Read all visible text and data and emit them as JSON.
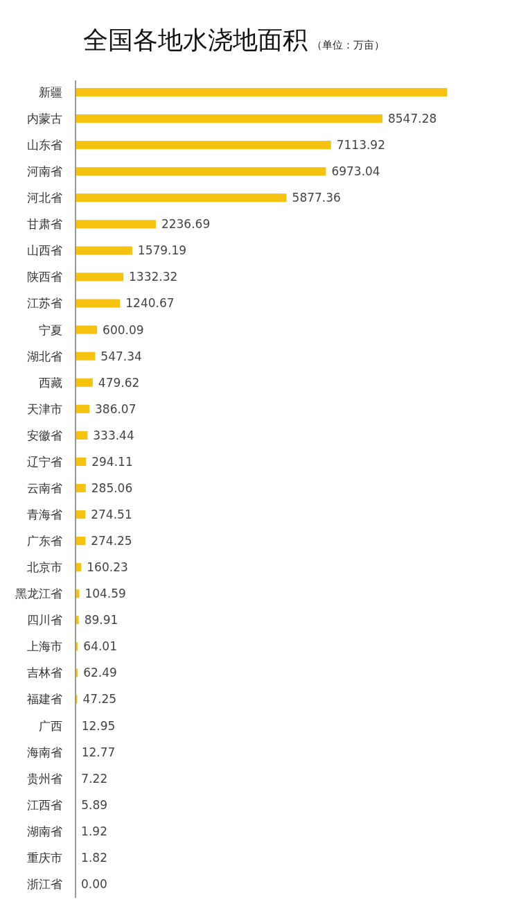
{
  "chart_data": {
    "type": "bar",
    "orientation": "horizontal",
    "title": "全国各地水浇地面积",
    "subtitle": "（单位：万亩）",
    "color": "#f5c20f",
    "xlim": [
      0,
      10400
    ],
    "tick_labels": "y",
    "categories": [
      "新疆",
      "内蒙古",
      "山东省",
      "河南省",
      "河北省",
      "甘肃省",
      "山西省",
      "陕西省",
      "江苏省",
      "宁夏",
      "湖北省",
      "西藏",
      "天津市",
      "安徽省",
      "辽宁省",
      "云南省",
      "青海省",
      "广东省",
      "北京市",
      "黑龙江省",
      "四川省",
      "上海市",
      "吉林省",
      "福建省",
      "广西",
      "海南省",
      "贵州省",
      "江西省",
      "湖南省",
      "重庆市",
      "浙江省"
    ],
    "values": [
      10350,
      8547.28,
      7113.92,
      6973.04,
      5877.36,
      2236.69,
      1579.19,
      1332.32,
      1240.67,
      600.09,
      547.34,
      479.62,
      386.07,
      333.44,
      294.11,
      285.06,
      274.51,
      274.25,
      160.23,
      104.59,
      89.91,
      64.01,
      62.49,
      47.25,
      12.95,
      12.77,
      7.22,
      5.89,
      1.92,
      1.82,
      0.0
    ],
    "value_labels": [
      null,
      "8547.28",
      "7113.92",
      "6973.04",
      "5877.36",
      "2236.69",
      "1579.19",
      "1332.32",
      "1240.67",
      "600.09",
      "547.34",
      "479.62",
      "386.07",
      "333.44",
      "294.11",
      "285.06",
      "274.51",
      "274.25",
      "160.23",
      "104.59",
      "89.91",
      "64.01",
      "62.49",
      "47.25",
      "12.95",
      "12.77",
      "7.22",
      "5.89",
      "1.92",
      "1.82",
      "0.00"
    ]
  }
}
